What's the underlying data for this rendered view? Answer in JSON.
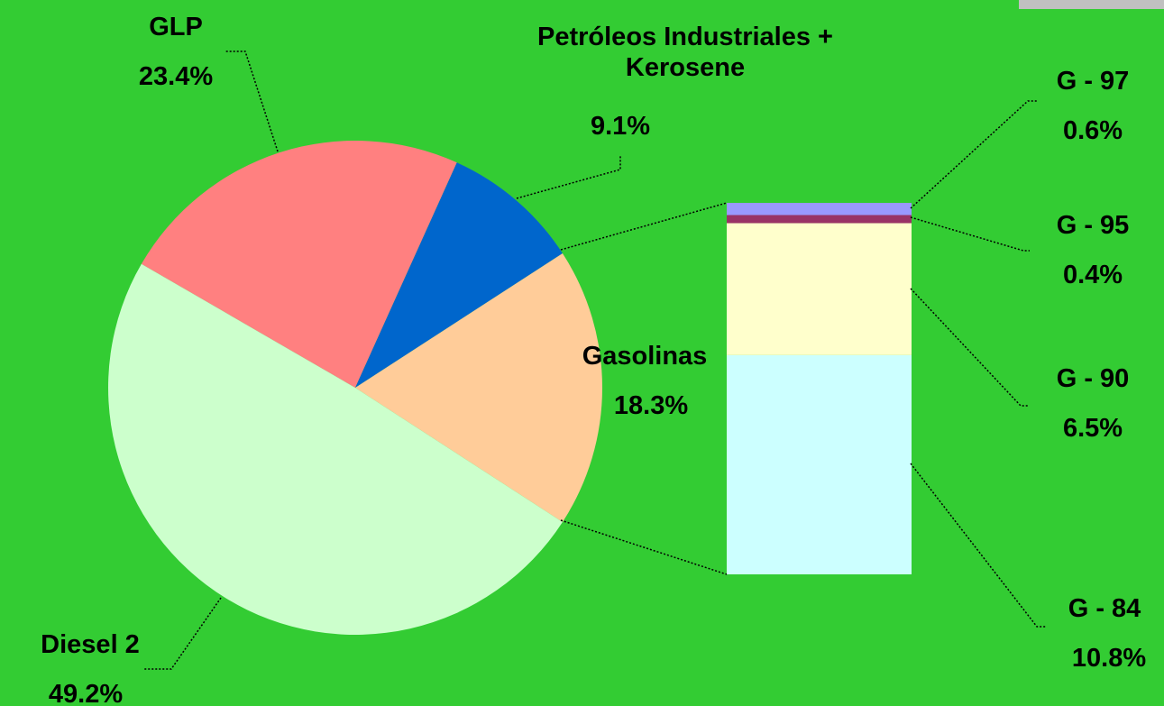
{
  "chart_data": {
    "type": "pie",
    "slices": [
      {
        "name": "GLP",
        "value": 23.4,
        "value_label": "23.4%",
        "color": "#ff8080"
      },
      {
        "name": "Petróleos Industriales + Kerosene",
        "value": 9.1,
        "value_label": "9.1%",
        "color": "#0066cc"
      },
      {
        "name": "Gasolinas",
        "value": 18.3,
        "value_label": "18.3%",
        "color": "#ffcc99",
        "parts": [
          {
            "name": "G - 84",
            "value": 10.8,
            "value_label": "10.8%",
            "color": "#ccffff"
          },
          {
            "name": "G - 90",
            "value": 6.5,
            "value_label": "6.5%",
            "color": "#ffffcc"
          },
          {
            "name": "G - 95",
            "value": 0.4,
            "value_label": "0.4%",
            "color": "#993366"
          },
          {
            "name": "G - 97",
            "value": 0.6,
            "value_label": "0.6%",
            "color": "#9999ff"
          }
        ]
      },
      {
        "name": "Diesel 2",
        "value": 49.2,
        "value_label": "49.2%",
        "color": "#ccffcc"
      }
    ]
  }
}
